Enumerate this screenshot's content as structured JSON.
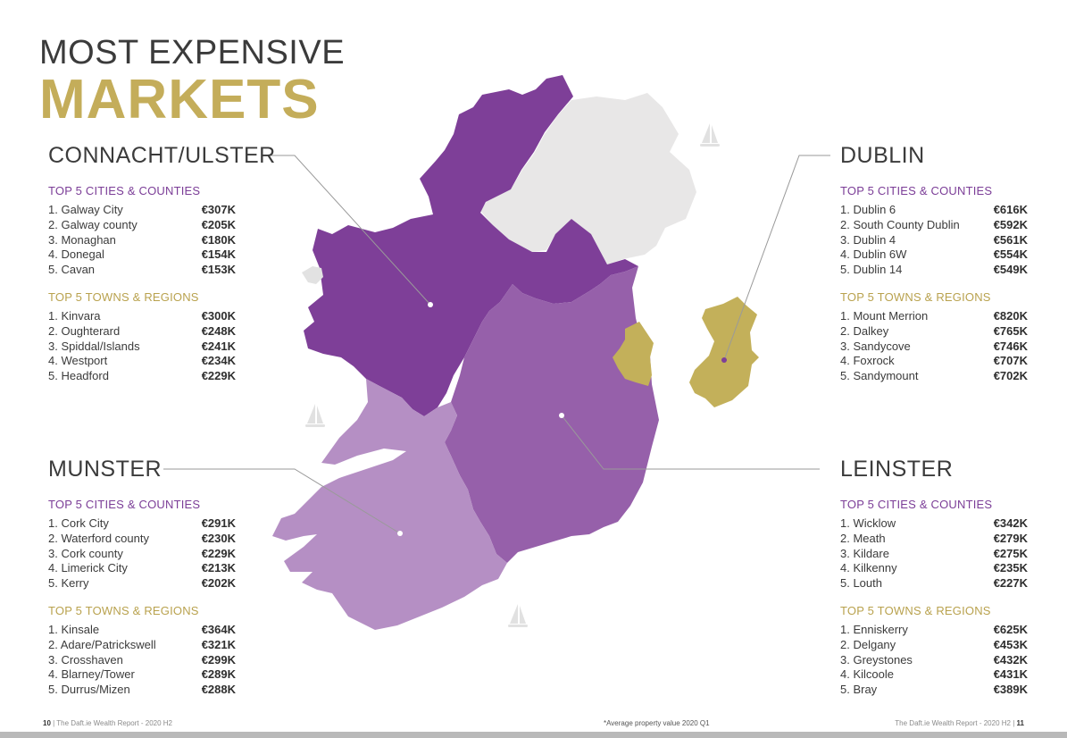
{
  "header": {
    "title_line1": "MOST EXPENSIVE",
    "title_line2": "MARKETS"
  },
  "colors": {
    "connacht_ulster": "#7e3f98",
    "leinster": "#9660aa",
    "munster": "#b58fc4",
    "dublin": "#c3b05a",
    "northern_ireland": "#e8e7e7",
    "gold_text": "#b9a24e",
    "purple_text": "#7b3d97"
  },
  "connacht_ulster": {
    "name": "CONNACHT/ULSTER",
    "cities_heading": "TOP 5 CITIES & COUNTIES",
    "cities": [
      {
        "name": "1. Galway City",
        "price": "€307K"
      },
      {
        "name": "2. Galway county",
        "price": "€205K"
      },
      {
        "name": "3. Monaghan",
        "price": "€180K"
      },
      {
        "name": "4. Donegal",
        "price": "€154K"
      },
      {
        "name": "5. Cavan",
        "price": "€153K"
      }
    ],
    "towns_heading": "TOP 5 TOWNS & REGIONS",
    "towns": [
      {
        "name": "1. Kinvara",
        "price": "€300K"
      },
      {
        "name": "2. Oughterard",
        "price": "€248K"
      },
      {
        "name": "3. Spiddal/Islands",
        "price": "€241K"
      },
      {
        "name": "4. Westport",
        "price": "€234K"
      },
      {
        "name": "5. Headford",
        "price": "€229K"
      }
    ]
  },
  "munster": {
    "name": "MUNSTER",
    "cities_heading": "TOP 5 CITIES & COUNTIES",
    "cities": [
      {
        "name": "1. Cork City",
        "price": "€291K"
      },
      {
        "name": "2. Waterford county",
        "price": "€230K"
      },
      {
        "name": "3. Cork county",
        "price": "€229K"
      },
      {
        "name": "4. Limerick City",
        "price": "€213K"
      },
      {
        "name": "5. Kerry",
        "price": "€202K"
      }
    ],
    "towns_heading": "TOP 5 TOWNS & REGIONS",
    "towns": [
      {
        "name": "1. Kinsale",
        "price": "€364K"
      },
      {
        "name": "2. Adare/Patrickswell",
        "price": "€321K"
      },
      {
        "name": "3. Crosshaven",
        "price": "€299K"
      },
      {
        "name": "4. Blarney/Tower",
        "price": "€289K"
      },
      {
        "name": "5. Durrus/Mizen",
        "price": "€288K"
      }
    ]
  },
  "dublin": {
    "name": "DUBLIN",
    "cities_heading": "TOP 5 CITIES & COUNTIES",
    "cities": [
      {
        "name": "1. Dublin 6",
        "price": "€616K"
      },
      {
        "name": "2. South County Dublin",
        "price": "€592K"
      },
      {
        "name": "3. Dublin 4",
        "price": "€561K"
      },
      {
        "name": "4. Dublin 6W",
        "price": "€554K"
      },
      {
        "name": "5. Dublin 14",
        "price": "€549K"
      }
    ],
    "towns_heading": "TOP 5 TOWNS & REGIONS",
    "towns": [
      {
        "name": "1. Mount Merrion",
        "price": "€820K"
      },
      {
        "name": "2. Dalkey",
        "price": "€765K"
      },
      {
        "name": "3. Sandycove",
        "price": "€746K"
      },
      {
        "name": "4. Foxrock",
        "price": "€707K"
      },
      {
        "name": "5. Sandymount",
        "price": "€702K"
      }
    ]
  },
  "leinster": {
    "name": "LEINSTER",
    "cities_heading": "TOP 5 CITIES & COUNTIES",
    "cities": [
      {
        "name": "1. Wicklow",
        "price": "€342K"
      },
      {
        "name": "2. Meath",
        "price": "€279K"
      },
      {
        "name": "3. Kildare",
        "price": "€275K"
      },
      {
        "name": "4. Kilkenny",
        "price": "€235K"
      },
      {
        "name": "5. Louth",
        "price": "€227K"
      }
    ],
    "towns_heading": "TOP 5 TOWNS & REGIONS",
    "towns": [
      {
        "name": "1. Enniskerry",
        "price": "€625K"
      },
      {
        "name": "2. Delgany",
        "price": "€453K"
      },
      {
        "name": "3. Greystones",
        "price": "€432K"
      },
      {
        "name": "4. Kilcoole",
        "price": "€431K"
      },
      {
        "name": "5. Bray",
        "price": "€389K"
      }
    ]
  },
  "footer": {
    "left_page": "10",
    "left_text": "The Daft.ie Wealth Report - 2020 H2",
    "note": "*Average property value 2020 Q1",
    "right_text": "The Daft.ie Wealth Report - 2020 H2",
    "right_page": "11"
  }
}
